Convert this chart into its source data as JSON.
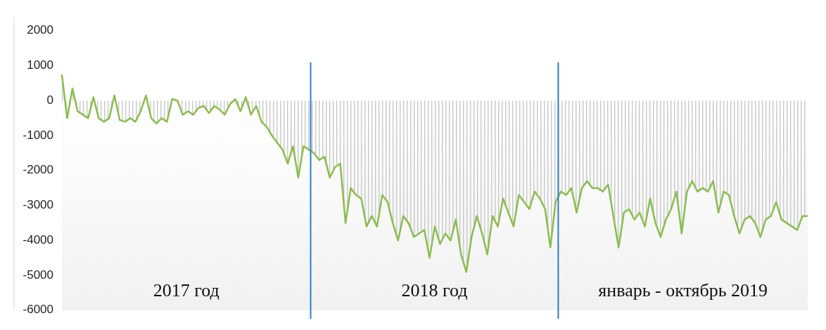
{
  "chart_data": {
    "type": "area",
    "categories": [
      null,
      null,
      null,
      null,
      null,
      null,
      null,
      null,
      null,
      null,
      null,
      null,
      null,
      null,
      null,
      null,
      null,
      null,
      null,
      null,
      null,
      null,
      null,
      null,
      null,
      null,
      null,
      null,
      null,
      null,
      null,
      null,
      null,
      null,
      null,
      null,
      null,
      null,
      null,
      null,
      null,
      null,
      null,
      null,
      null,
      null,
      null,
      null,
      null,
      null,
      null,
      null,
      null,
      null,
      null,
      null,
      null,
      null,
      null,
      null,
      null,
      null,
      null,
      null,
      null,
      null,
      null,
      null,
      null,
      null,
      null,
      null,
      null,
      null,
      null,
      null,
      null,
      null,
      null,
      null,
      null,
      null,
      null,
      null,
      null,
      null,
      null,
      null,
      null,
      null,
      null,
      null,
      null,
      null,
      null,
      null,
      null,
      null,
      null,
      null,
      null,
      null,
      null,
      null,
      null,
      null,
      null,
      null,
      null,
      null,
      null,
      null,
      null,
      null,
      null,
      null,
      null,
      null,
      null,
      null,
      null,
      null,
      null,
      null,
      null,
      null,
      null,
      null,
      null,
      null,
      null,
      null,
      null,
      null,
      null,
      null,
      null,
      null,
      null,
      null,
      null,
      null,
      null
    ],
    "series": [
      {
        "color": "#8bbd4f",
        "values": [
          750,
          -500,
          350,
          -300,
          -400,
          -500,
          100,
          -500,
          -600,
          -500,
          150,
          -550,
          -600,
          -500,
          -600,
          -300,
          150,
          -500,
          -650,
          -500,
          -600,
          50,
          0,
          -400,
          -300,
          -400,
          -200,
          -150,
          -350,
          -150,
          -250,
          -400,
          -100,
          50,
          -300,
          100,
          -400,
          -150,
          -600,
          -750,
          -1000,
          -1200,
          -1400,
          -1800,
          -1300,
          -2200,
          -1300,
          -1400,
          -1500,
          -1700,
          -1600,
          -2200,
          -1900,
          -1800,
          -3500,
          -2500,
          -2700,
          -2800,
          -3600,
          -3300,
          -3600,
          -2700,
          -2900,
          -3500,
          -4000,
          -3300,
          -3500,
          -3900,
          -3800,
          -3700,
          -4500,
          -3600,
          -4100,
          -3800,
          -4000,
          -3400,
          -4400,
          -4900,
          -3900,
          -3300,
          -3800,
          -4400,
          -3300,
          -3600,
          -2800,
          -3200,
          -3600,
          -2700,
          -2900,
          -3100,
          -2600,
          -2800,
          -3100,
          -4200,
          -2900,
          -2600,
          -2700,
          -2500,
          -3200,
          -2500,
          -2300,
          -2500,
          -2500,
          -2600,
          -2400,
          -3300,
          -4200,
          -3200,
          -3100,
          -3400,
          -3200,
          -3600,
          -2800,
          -3500,
          -3900,
          -3400,
          -3100,
          -2600,
          -3800,
          -2600,
          -2300,
          -2600,
          -2500,
          -2600,
          -2300,
          -3200,
          -2600,
          -2700,
          -3300,
          -3800,
          -3400,
          -3300,
          -3500,
          -3900,
          -3400,
          -3300,
          -2900,
          -3400,
          -3500,
          -3600,
          -3700,
          -3300,
          -3300
        ]
      }
    ],
    "ylim": [
      -6000,
      2000
    ],
    "yticks": [
      -6000,
      -5000,
      -4000,
      -3000,
      -2000,
      -1000,
      0,
      1000,
      2000
    ],
    "annotations": [
      "2017 год",
      "2018 год",
      "январь - октябрь 2019"
    ]
  }
}
